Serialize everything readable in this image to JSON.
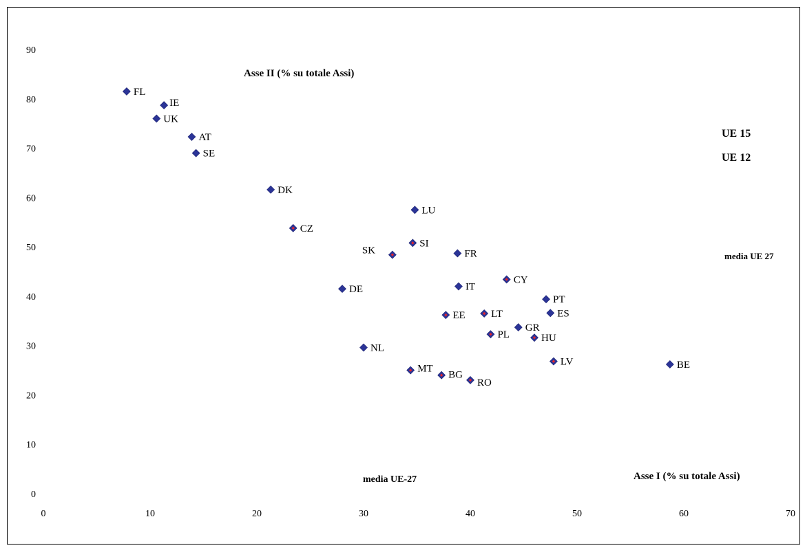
{
  "chart_data": {
    "type": "scatter",
    "xlabel": "Asse I (% su totale Assi)",
    "ylabel": "Asse II (% su totale Assi)",
    "xlim": [
      0,
      70
    ],
    "ylim": [
      0,
      90
    ],
    "xticks": [
      0,
      10,
      20,
      30,
      40,
      50,
      60,
      70
    ],
    "yticks": [
      0,
      10,
      20,
      30,
      40,
      50,
      60,
      70,
      80,
      90
    ],
    "grid": false,
    "legend": {
      "placement": "right",
      "entries": [
        "UE 15",
        "UE 12"
      ]
    },
    "annotations": [
      "media UE 27",
      "media UE-27"
    ],
    "colors": {
      "marker": "#2b3497",
      "ue15": "#2b3497",
      "ue12": "#e4252c",
      "ue12_marker_center": "#e4252c"
    },
    "series": [
      {
        "name": "UE 15",
        "points": [
          {
            "label": "FL",
            "x": 7.8,
            "y": 81.5
          },
          {
            "label": "IE",
            "x": 11.3,
            "y": 78.7
          },
          {
            "label": "UK",
            "x": 10.6,
            "y": 76.0
          },
          {
            "label": "AT",
            "x": 13.9,
            "y": 72.3
          },
          {
            "label": "SE",
            "x": 14.3,
            "y": 69.0
          },
          {
            "label": "DK",
            "x": 21.3,
            "y": 61.6
          },
          {
            "label": "LU",
            "x": 34.8,
            "y": 57.5
          },
          {
            "label": "FR",
            "x": 38.8,
            "y": 48.7
          },
          {
            "label": "DE",
            "x": 28.0,
            "y": 41.5
          },
          {
            "label": "IT",
            "x": 38.9,
            "y": 42.0
          },
          {
            "label": "PT",
            "x": 47.1,
            "y": 39.4
          },
          {
            "label": "ES",
            "x": 47.5,
            "y": 36.6
          },
          {
            "label": "GR",
            "x": 44.5,
            "y": 33.7
          },
          {
            "label": "NL",
            "x": 30.0,
            "y": 29.6
          },
          {
            "label": "BE",
            "x": 58.7,
            "y": 26.2
          }
        ]
      },
      {
        "name": "UE 12",
        "points": [
          {
            "label": "CZ",
            "x": 23.4,
            "y": 53.8
          },
          {
            "label": "SK",
            "x": 32.7,
            "y": 48.4
          },
          {
            "label": "SI",
            "x": 34.6,
            "y": 50.8
          },
          {
            "label": "CY",
            "x": 43.4,
            "y": 43.4
          },
          {
            "label": "EE",
            "x": 37.7,
            "y": 36.2
          },
          {
            "label": "LT",
            "x": 41.3,
            "y": 36.5
          },
          {
            "label": "PL",
            "x": 41.9,
            "y": 32.3
          },
          {
            "label": "HU",
            "x": 46.0,
            "y": 31.6
          },
          {
            "label": "LV",
            "x": 47.8,
            "y": 26.8
          },
          {
            "label": "MT",
            "x": 34.4,
            "y": 25.0
          },
          {
            "label": "BG",
            "x": 37.3,
            "y": 24.0
          },
          {
            "label": "RO",
            "x": 40.0,
            "y": 23.0
          }
        ]
      }
    ]
  }
}
